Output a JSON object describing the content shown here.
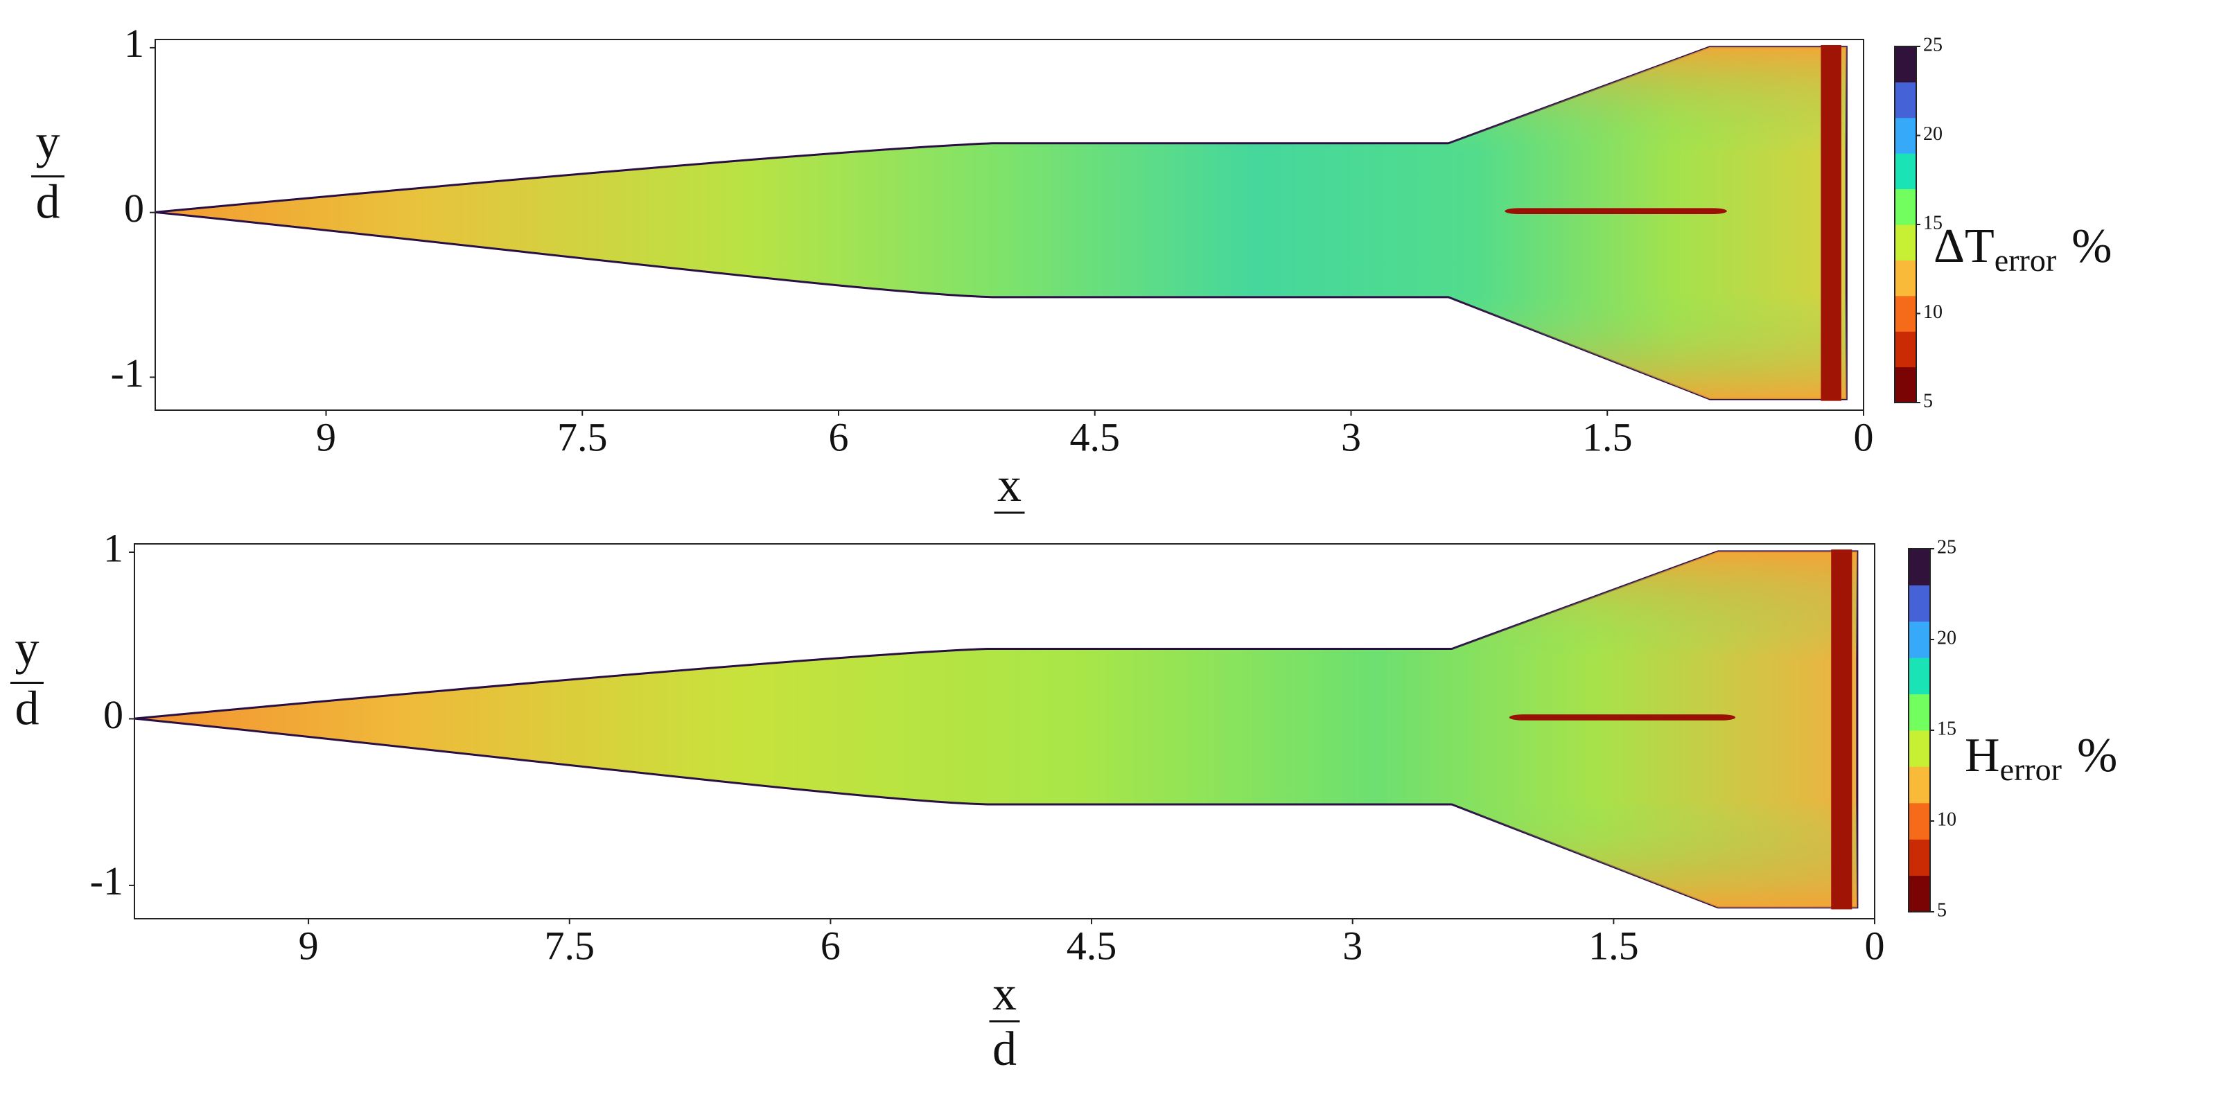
{
  "chart_data": [
    {
      "type": "heatmap",
      "xlim": [
        10,
        0
      ],
      "xticks": [
        9,
        7.5,
        6,
        4.5,
        3,
        1.5,
        0
      ],
      "ylim": [
        -1.2,
        1.05
      ],
      "yticks": [
        1,
        0,
        -1
      ],
      "xlabel": {
        "numerator": "x"
      },
      "ylabel": {
        "numerator": "y",
        "denominator": "d"
      },
      "colorbar": {
        "label": "ΔT",
        "label_subscript": "error",
        "label_unit": "%",
        "lim": [
          5,
          25
        ],
        "ticks": [
          5,
          10,
          15,
          20,
          25
        ],
        "colormap": [
          "#7a0403",
          "#ca2a04",
          "#f66b19",
          "#faba39",
          "#c7ef34",
          "#72fe5e",
          "#1ae4b6",
          "#36aaf9",
          "#4662d7",
          "#30123b"
        ]
      }
    },
    {
      "type": "heatmap",
      "xlim": [
        10,
        0
      ],
      "xticks": [
        9,
        7.5,
        6,
        4.5,
        3,
        1.5,
        0
      ],
      "ylim": [
        -1.2,
        1.05
      ],
      "yticks": [
        1,
        0,
        -1
      ],
      "xlabel": {
        "numerator": "x",
        "denominator": "d"
      },
      "ylabel": {
        "numerator": "y",
        "denominator": "d"
      },
      "colorbar": {
        "label": "H",
        "label_subscript": "error",
        "label_unit": "%",
        "lim": [
          5,
          25
        ],
        "ticks": [
          5,
          10,
          15,
          20,
          25
        ],
        "colormap": [
          "#7a0403",
          "#ca2a04",
          "#f66b19",
          "#faba39",
          "#c7ef34",
          "#72fe5e",
          "#1ae4b6",
          "#36aaf9",
          "#4662d7",
          "#30123b"
        ]
      }
    }
  ]
}
